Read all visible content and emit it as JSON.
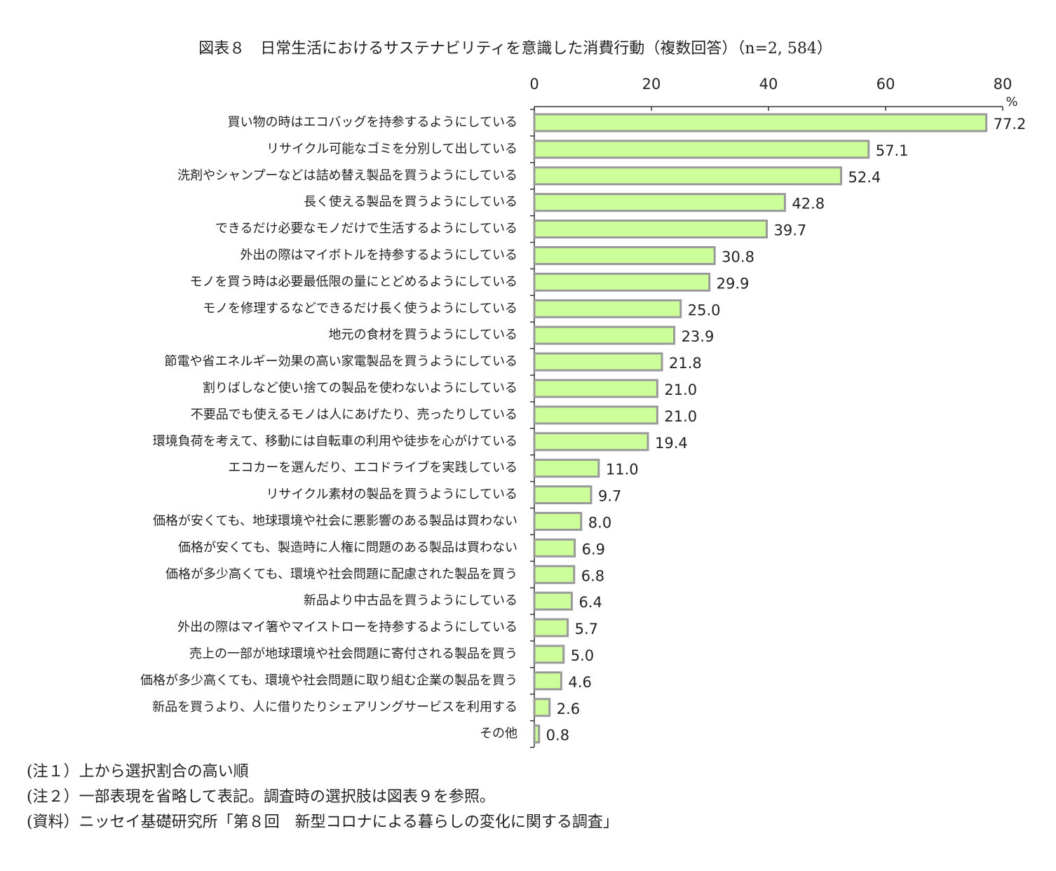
{
  "chart_data": {
    "type": "barh",
    "title": "図表８　日常生活におけるサステナビリティを意識した消費行動（複数回答）（n=2, 584）",
    "x_unit": "%",
    "categories": [
      "買い物の時はエコバッグを持参するようにしている",
      "リサイクル可能なゴミを分別して出している",
      "洗剤やシャンプーなどは詰め替え製品を買うようにしている",
      "長く使える製品を買うようにしている",
      "できるだけ必要なモノだけで生活するようにしている",
      "外出の際はマイボトルを持参するようにしている",
      "モノを買う時は必要最低限の量にとどめるようにしている",
      "モノを修理するなどできるだけ長く使うようにしている",
      "地元の食材を買うようにしている",
      "節電や省エネルギー効果の高い家電製品を買うようにしている",
      "割りばしなど使い捨ての製品を使わないようにしている",
      "不要品でも使えるモノは人にあげたり、売ったりしている",
      "環境負荷を考えて、移動には自転車の利用や徒歩を心がけている",
      "エコカーを選んだり、エコドライブを実践している",
      "リサイクル素材の製品を買うようにしている",
      "価格が安くても、地球環境や社会に悪影響のある製品は買わない",
      "価格が安くても、製造時に人権に問題のある製品は買わない",
      "価格が多少高くても、環境や社会問題に配慮された製品を買う",
      "新品より中古品を買うようにしている",
      "外出の際はマイ箸やマイストローを持参するようにしている",
      "売上の一部が地球環境や社会問題に寄付される製品を買う",
      "価格が多少高くても、環境や社会問題に取り組む企業の製品を買う",
      "新品を買うより、人に借りたりシェアリングサービスを利用する",
      "その他"
    ],
    "values": [
      77.2,
      57.1,
      52.4,
      42.8,
      39.7,
      30.8,
      29.9,
      25.0,
      23.9,
      21.8,
      21.0,
      21.0,
      19.4,
      11.0,
      9.7,
      8.0,
      6.9,
      6.8,
      6.4,
      5.7,
      5.0,
      4.6,
      2.6,
      0.8
    ],
    "value_labels": [
      "77.2",
      "57.1",
      "52.4",
      "42.8",
      "39.7",
      "30.8",
      "29.9",
      "25.0",
      "23.9",
      "21.8",
      "21.0",
      "21.0",
      "19.4",
      "11.0",
      "9.7",
      "8.0",
      "6.9",
      "6.8",
      "6.4",
      "5.7",
      "5.0",
      "4.6",
      "2.6",
      "0.8"
    ],
    "color": "#ccff99",
    "xlim": [
      0,
      80
    ],
    "xticks": [
      0,
      20,
      40,
      60,
      80
    ],
    "notes": [
      "(注１）上から選択割合の高い順",
      "(注２）一部表現を省略して表記。調査時の選択肢は図表９を参照。",
      "(資料）ニッセイ基礎研究所「第８回　新型コロナによる暮らしの変化に関する調査」"
    ]
  }
}
